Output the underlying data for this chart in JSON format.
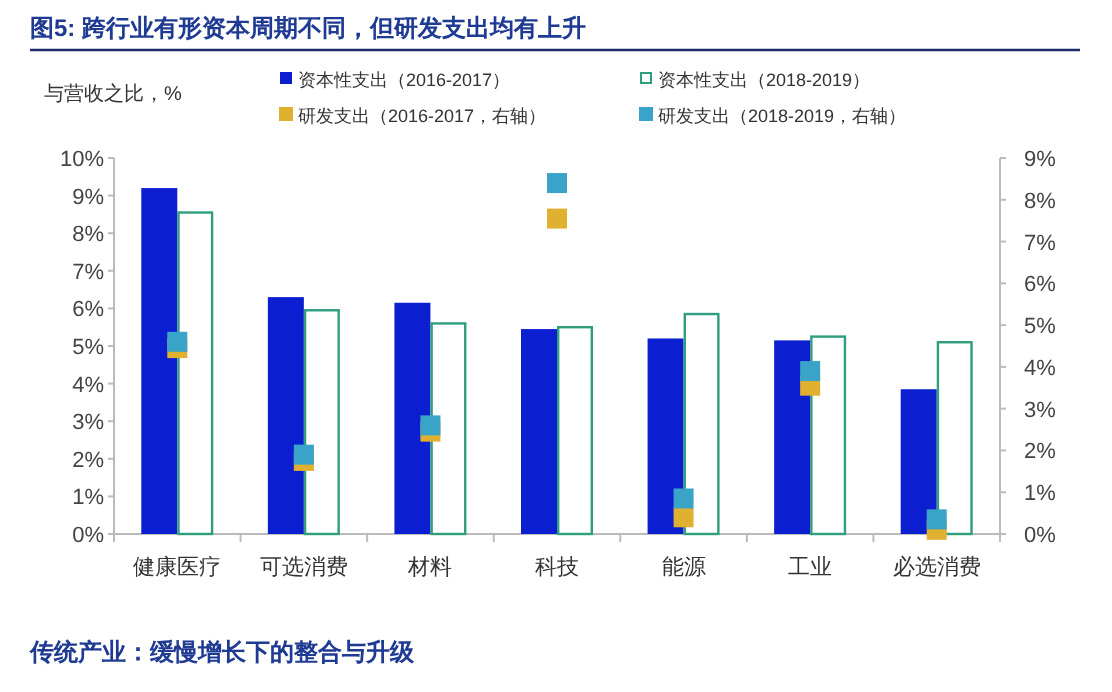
{
  "chart_data": {
    "type": "bar",
    "title": "图5: 跨行业有形资本周期不同，但研发支出均有上升",
    "ylabel": "与营收之比，%",
    "categories": [
      "健康医疗",
      "可选消费",
      "材料",
      "科技",
      "能源",
      "工业",
      "必选消费"
    ],
    "series": [
      {
        "name": "资本性支出（2016-2017）",
        "color": "#0b1fd1",
        "values": [
          9.2,
          6.3,
          6.15,
          5.45,
          5.2,
          5.15,
          3.85
        ]
      },
      {
        "name": "资本性支出（2018-2019）",
        "color": "#2e9e7f",
        "values": [
          8.55,
          5.95,
          5.6,
          5.5,
          5.85,
          5.25,
          5.1
        ]
      },
      {
        "name": "研发支出（2016-2017，右轴）",
        "type": "scatter",
        "axis": "y2",
        "marker": "square",
        "color": "#e0b030",
        "values": [
          4.45,
          1.75,
          2.45,
          7.55,
          0.4,
          3.55,
          0.1
        ]
      },
      {
        "name": "研发支出（2018-2019，右轴）",
        "type": "scatter",
        "axis": "y2",
        "marker": "square",
        "color": "#3aa3c8",
        "values": [
          4.6,
          1.9,
          2.6,
          8.4,
          0.85,
          3.9,
          0.35
        ]
      }
    ],
    "ylim": [
      0,
      10
    ],
    "yticks": [
      {
        "value": 0,
        "label": "0%"
      },
      {
        "value": 1,
        "label": "1%"
      },
      {
        "value": 2,
        "label": "2%"
      },
      {
        "value": 3,
        "label": "3%"
      },
      {
        "value": 4,
        "label": "4%"
      },
      {
        "value": 5,
        "label": "5%"
      },
      {
        "value": 6,
        "label": "6%"
      },
      {
        "value": 7,
        "label": "7%"
      },
      {
        "value": 8,
        "label": "8%"
      },
      {
        "value": 9,
        "label": "9%"
      },
      {
        "value": 10,
        "label": "10%"
      }
    ],
    "y2lim": [
      0,
      9
    ],
    "y2ticks": [
      {
        "value": 0,
        "label": "0%"
      },
      {
        "value": 1,
        "label": "1%"
      },
      {
        "value": 2,
        "label": "2%"
      },
      {
        "value": 3,
        "label": "3%"
      },
      {
        "value": 4,
        "label": "4%"
      },
      {
        "value": 5,
        "label": "5%"
      },
      {
        "value": 6,
        "label": "6%"
      },
      {
        "value": 7,
        "label": "7%"
      },
      {
        "value": 8,
        "label": "8%"
      },
      {
        "value": 9,
        "label": "9%"
      }
    ],
    "legend": "top",
    "annotations": [
      "传统产业：缓慢增长下的整合与升级"
    ]
  }
}
